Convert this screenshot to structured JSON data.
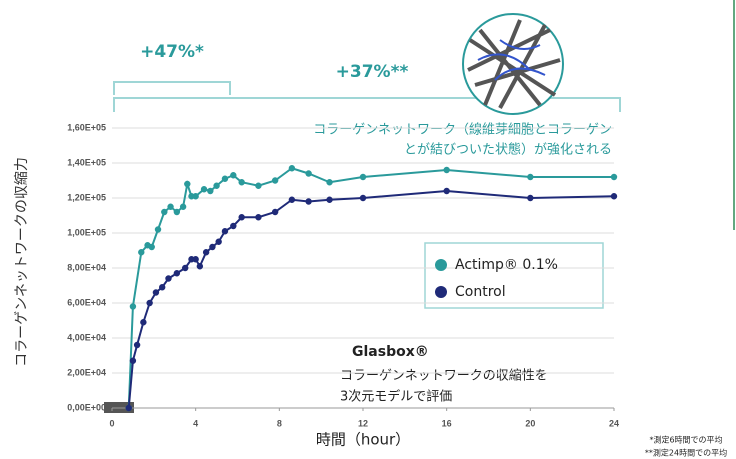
{
  "chart_data": {
    "type": "line",
    "y_label": "コラーゲンネットワークの収縮力",
    "x_label": "時間（hour）",
    "annotations": [
      "+47%*",
      "+37%**",
      "コラーゲンネットワーク（線維芽細胞とコラーゲン",
      "とが結びついた状態）が強化される",
      "Glasbox®",
      "コラーゲンネットワークの収縮性を",
      "3次元モデルで評価",
      "*測定6時間での平均",
      "**測定24時間での平均"
    ],
    "xlim": [
      0,
      24
    ],
    "xticks": [
      0,
      4,
      8,
      12,
      16,
      20,
      24
    ],
    "ylim": [
      0,
      160000
    ],
    "yticks": [
      {
        "value": 0,
        "label": "0,00E+00"
      },
      {
        "value": 20000,
        "label": "2,00E+04"
      },
      {
        "value": 40000,
        "label": "4,00E+04"
      },
      {
        "value": 60000,
        "label": "6,00E+04"
      },
      {
        "value": 80000,
        "label": "8,00E+04"
      },
      {
        "value": 100000,
        "label": "1,00E+05"
      },
      {
        "value": 120000,
        "label": "1,20E+05"
      },
      {
        "value": 140000,
        "label": "1,40E+05"
      },
      {
        "value": 160000,
        "label": "1,60E+05"
      }
    ],
    "grid": true,
    "series": [
      {
        "name": "Actimp® 0.1%",
        "color": "#2a9a9b",
        "x": [
          0.8,
          1.0,
          1.4,
          1.7,
          1.9,
          2.2,
          2.5,
          2.8,
          3.1,
          3.4,
          3.6,
          3.8,
          4.0,
          4.4,
          4.7,
          5.0,
          5.4,
          5.8,
          6.2,
          7.0,
          7.8,
          8.6,
          9.4,
          10.4,
          12,
          16,
          20,
          24
        ],
        "values": [
          0,
          58000,
          89000,
          93000,
          92000,
          102000,
          112000,
          115000,
          112000,
          115000,
          128000,
          121000,
          121000,
          125000,
          124000,
          127000,
          131000,
          133000,
          129000,
          127000,
          130000,
          137000,
          134000,
          129000,
          132000,
          136000,
          132000,
          132000
        ]
      },
      {
        "name": "Control",
        "color": "#1f2a78",
        "x": [
          0.8,
          1.0,
          1.2,
          1.5,
          1.8,
          2.1,
          2.4,
          2.7,
          3.1,
          3.5,
          3.8,
          4.0,
          4.2,
          4.5,
          4.8,
          5.1,
          5.4,
          5.8,
          6.2,
          7.0,
          7.8,
          8.6,
          9.4,
          10.4,
          12,
          16,
          20,
          24
        ],
        "values": [
          0,
          27000,
          36000,
          49000,
          60000,
          66000,
          69000,
          74000,
          77000,
          80000,
          85000,
          85000,
          81000,
          89000,
          92000,
          95000,
          101000,
          104000,
          109000,
          109000,
          112000,
          119000,
          118000,
          119000,
          120000,
          124000,
          120000,
          121000
        ]
      }
    ]
  }
}
